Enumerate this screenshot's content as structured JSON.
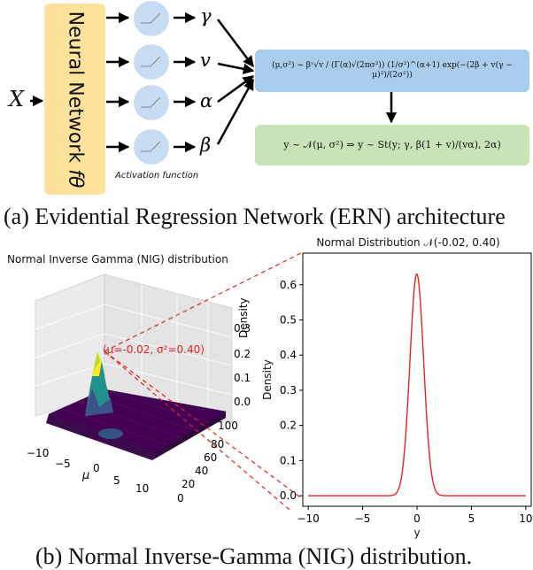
{
  "top": {
    "input_label": "X",
    "network_label": "Neural Network",
    "network_subscript": "fθ",
    "activation_label": "Activation function",
    "outputs": [
      "γ",
      "v",
      "α",
      "β"
    ],
    "nig_formula": "(μ,σ²) ~ βᵛ√v / (Γ(α)√(2πσ²)) (1/σ²)^(α+1) exp(−(2β + v(γ − μ)²)/(2σ²))",
    "student_t_formula": "y ~ 𝒩(μ, σ²) ⇒ y ~ St(y; γ, β(1 + v)/(vα), 2α)",
    "caption": "(a) Evidential Regression Network (ERN) architecture",
    "colors": {
      "network": "#fce29a",
      "neuron": "#c7dcf2",
      "nig_box": "#a9cdec",
      "st_box": "#c8e3b8"
    }
  },
  "bottom": {
    "left_title": "Normal Inverse Gamma (NIG) distribution",
    "peak_annotation": "(μ=-0.02, σ²=0.40)",
    "mu_axis_label": "μ",
    "mu_ticks": [
      "−10",
      "−5",
      "0",
      "5",
      "10"
    ],
    "sigma_ticks": [
      "0",
      "20",
      "40",
      "60",
      "80",
      "100"
    ],
    "density_ticks": [
      "0.0",
      "0.1",
      "0.2",
      "0.3"
    ],
    "density_label": "Density",
    "caption": "(b) Normal Inverse-Gamma (NIG) distribution."
  },
  "chart_data": {
    "type": "line",
    "title": "Normal Distribution 𝒩(-0.02, 0.40)",
    "xlabel": "y",
    "ylabel": "Density",
    "xlim": [
      -10.5,
      10.5
    ],
    "ylim": [
      -0.03,
      0.69
    ],
    "x_ticks": [
      -10,
      -5,
      0,
      5,
      10
    ],
    "x_tick_labels": [
      "−10",
      "−5",
      "0",
      "5",
      "10"
    ],
    "y_ticks": [
      0.0,
      0.1,
      0.2,
      0.3,
      0.4,
      0.5,
      0.6
    ],
    "y_tick_labels": [
      "0.0",
      "0.1",
      "0.2",
      "0.3",
      "0.4",
      "0.5",
      "0.6"
    ],
    "series": [
      {
        "mean": -0.02,
        "variance": 0.4,
        "color": "#e8221e",
        "x_range": [
          -10,
          10
        ]
      }
    ],
    "grid": false
  }
}
